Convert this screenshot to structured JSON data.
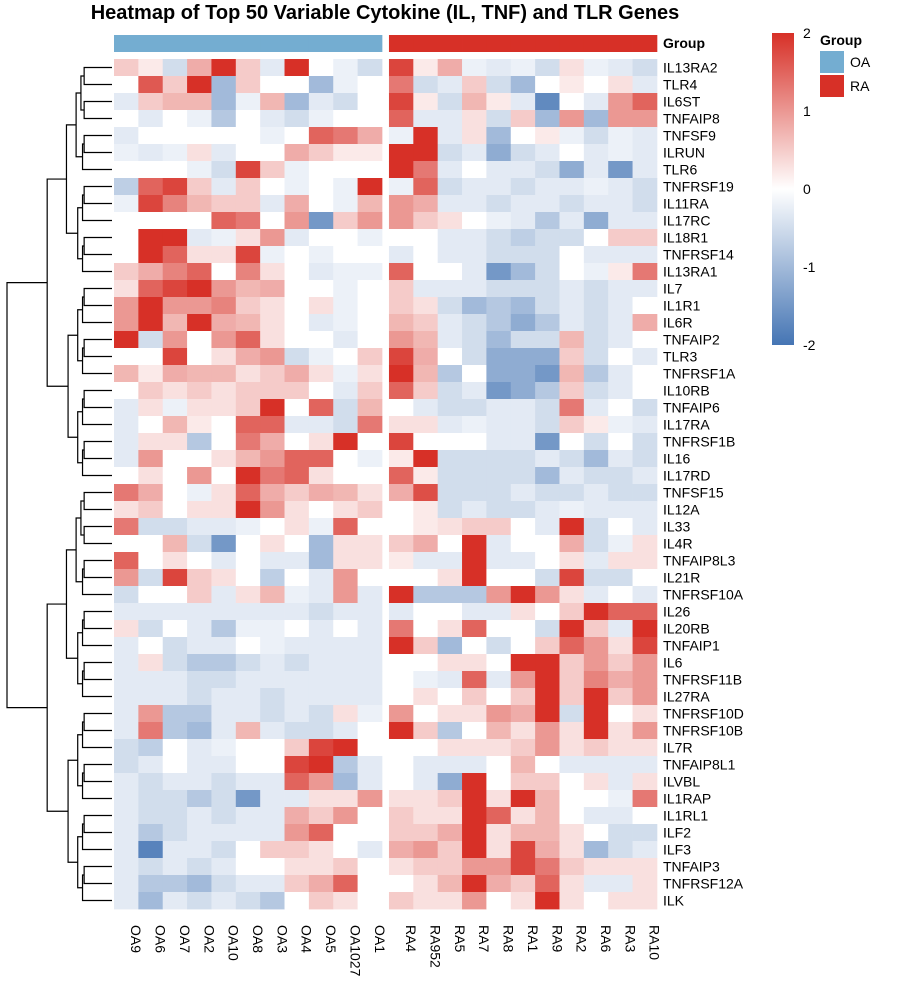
{
  "chart_data": {
    "type": "heatmap",
    "title": "Heatmap of Top 50 Variable Cytokine (IL, TNF) and TLR Genes",
    "columns": [
      "OA9",
      "OA6",
      "OA7",
      "OA2",
      "OA10",
      "OA8",
      "OA3",
      "OA4",
      "OA5",
      "OA1027",
      "OA1",
      "RA4",
      "RA952",
      "RA5",
      "RA7",
      "RA8",
      "RA1",
      "RA9",
      "RA2",
      "RA6",
      "RA3",
      "RA10"
    ],
    "column_groups": [
      "OA",
      "OA",
      "OA",
      "OA",
      "OA",
      "OA",
      "OA",
      "OA",
      "OA",
      "OA",
      "OA",
      "RA",
      "RA",
      "RA",
      "RA",
      "RA",
      "RA",
      "RA",
      "RA",
      "RA",
      "RA",
      "RA"
    ],
    "rows": [
      "IL13RA2",
      "TLR4",
      "IL6ST",
      "TNFAIP8",
      "TNFSF9",
      "ILRUN",
      "TLR6",
      "TNFRSF19",
      "IL11RA",
      "IL17RC",
      "IL18R1",
      "TNFRSF14",
      "IL13RA1",
      "IL7",
      "IL1R1",
      "IL6R",
      "TNFAIP2",
      "TLR3",
      "TNFRSF1A",
      "IL10RB",
      "TNFAIP6",
      "IL17RA",
      "TNFRSF1B",
      "IL16",
      "IL17RD",
      "TNFSF15",
      "IL12A",
      "IL33",
      "IL4R",
      "TNFAIP8L3",
      "IL21R",
      "TNFRSF10A",
      "IL26",
      "IL20RB",
      "TNFAIP1",
      "IL6",
      "TNFRSF11B",
      "IL27RA",
      "TNFRSF10D",
      "TNFRSF10B",
      "IL7R",
      "TNFAIP8L1",
      "ILVBL",
      "IL1RAP",
      "IL1RL1",
      "ILF2",
      "ILF3",
      "TNFAIP3",
      "TNFRSF12A",
      "ILK"
    ],
    "values": [
      [
        0.5,
        0.2,
        -0.5,
        0.8,
        2,
        0.5,
        -0.3,
        2,
        0,
        -0.2,
        -0.5,
        1.8,
        0.2,
        0.8,
        -0.2,
        -0.3,
        -0.2,
        -0.5,
        0.3,
        -0.2,
        -0.3,
        -0.5
      ],
      [
        0,
        1.6,
        0.5,
        2,
        -1,
        0.5,
        0,
        0,
        -1,
        -0.2,
        0,
        1.3,
        -0.5,
        -0.3,
        0.5,
        -0.5,
        -1,
        0,
        0.2,
        0,
        0.3,
        -0.3
      ],
      [
        -0.3,
        0.5,
        0.7,
        0.7,
        -1,
        -0.2,
        0.7,
        -1,
        -0.3,
        -0.5,
        0,
        1.8,
        0.2,
        -0.5,
        0.7,
        0.2,
        -0.3,
        -1.7,
        0,
        -0.3,
        1,
        1.5
      ],
      [
        0,
        -0.3,
        0,
        -0.2,
        -0.8,
        0,
        -0.3,
        -0.5,
        -0.2,
        0,
        0,
        1.5,
        -0.3,
        -0.3,
        0.3,
        -0.5,
        0.5,
        -1,
        1,
        -1,
        1,
        1
      ],
      [
        -0.3,
        0,
        0,
        0,
        0,
        0,
        -0.2,
        0,
        1.5,
        1.3,
        0.8,
        -0.2,
        2,
        -0.3,
        0.3,
        -1,
        0,
        0.2,
        -0.2,
        -0.5,
        -0.2,
        -0.3
      ],
      [
        -0.2,
        -0.3,
        -0.2,
        0.3,
        -0.3,
        0,
        0,
        0.8,
        0.5,
        0.2,
        0.2,
        2,
        2,
        -0.5,
        -0.3,
        -1.2,
        -0.5,
        -0.3,
        0,
        -0.3,
        -0.2,
        -0.3
      ],
      [
        0,
        0,
        0,
        -0.2,
        -0.5,
        1.8,
        0.5,
        -0.2,
        0,
        0,
        0,
        2,
        1.3,
        -0.3,
        0,
        -0.3,
        -0.3,
        -0.5,
        -1.2,
        -0.3,
        -1.5,
        -0.3
      ],
      [
        -0.7,
        1.5,
        1.8,
        0.5,
        -0.3,
        0.5,
        0,
        -0.2,
        0,
        -0.2,
        2,
        -0.2,
        1.5,
        -0.5,
        -0.3,
        -0.3,
        -0.5,
        -0.3,
        -0.3,
        -0.2,
        -0.3,
        -0.5
      ],
      [
        -0.2,
        1.8,
        1.2,
        0.7,
        0.5,
        0.5,
        -0.3,
        0.8,
        0,
        -0.2,
        0.7,
        1,
        0.8,
        -0.3,
        -0.3,
        -0.5,
        -0.3,
        -0.3,
        -0.5,
        -0.3,
        -0.3,
        -0.5
      ],
      [
        0,
        0,
        0,
        0,
        1.5,
        1.3,
        0,
        1,
        -1.5,
        0.5,
        1,
        1,
        0.5,
        0.3,
        0,
        -0.2,
        -0.3,
        -0.8,
        -0.3,
        -1.2,
        -0.3,
        -0.3
      ],
      [
        0,
        2,
        2,
        -0.3,
        -0.2,
        0.3,
        1,
        -0.3,
        0,
        0,
        -0.2,
        0,
        0,
        -0.3,
        -0.3,
        -0.5,
        -0.7,
        -0.5,
        -0.5,
        0,
        0.5,
        0.5
      ],
      [
        0,
        2,
        1.5,
        0.3,
        0.3,
        1.8,
        -0.2,
        0,
        -0.2,
        0,
        0,
        -0.3,
        0,
        -0.3,
        -0.3,
        -0.5,
        -0.5,
        -0.5,
        0,
        -0.3,
        -0.3,
        -0.3
      ],
      [
        0.5,
        0.8,
        1.2,
        1.5,
        0,
        1.2,
        0.3,
        0,
        -0.3,
        -0.2,
        -0.2,
        1.5,
        0,
        0,
        -0.3,
        -1.5,
        -1,
        -0.5,
        0,
        -0.2,
        0.2,
        1.3
      ],
      [
        0.3,
        1.5,
        1.8,
        2,
        1,
        0.7,
        0.8,
        0,
        0,
        -0.2,
        0,
        0.5,
        -0.3,
        -0.3,
        -0.3,
        -0.5,
        -0.5,
        -0.5,
        -0.3,
        -0.5,
        -0.3,
        -0.3
      ],
      [
        1,
        2,
        1,
        1,
        1.2,
        0.5,
        0.3,
        0,
        0.3,
        -0.2,
        0,
        0.5,
        0.3,
        -0.5,
        -1,
        -0.8,
        -1,
        -0.5,
        -0.3,
        -0.5,
        -0.3,
        0
      ],
      [
        1,
        2,
        0.7,
        2,
        0.8,
        0.7,
        0.3,
        0,
        -0.3,
        -0.2,
        0,
        0.7,
        0.5,
        -0.3,
        -0.5,
        -0.8,
        -1.2,
        -0.8,
        -0.3,
        -0.5,
        -0.3,
        0.8
      ],
      [
        2,
        -0.5,
        1,
        0,
        1,
        1.5,
        0.3,
        0,
        0,
        -0.3,
        0,
        1,
        0.7,
        -0.3,
        -0.5,
        -1,
        -0.5,
        -0.5,
        0.7,
        -0.5,
        -0.3,
        0
      ],
      [
        0,
        0,
        1.8,
        0,
        0.3,
        0.8,
        1,
        -0.5,
        -0.2,
        0,
        0.5,
        1.8,
        0.8,
        0,
        -0.5,
        -1.2,
        -1.2,
        -1.2,
        0.5,
        -0.5,
        0,
        -0.3
      ],
      [
        0.7,
        0.2,
        0.8,
        0.7,
        0.7,
        0.3,
        0.5,
        0.8,
        0.3,
        -0.2,
        0.3,
        2,
        0.7,
        -0.8,
        0,
        -1.2,
        -1.2,
        -1.5,
        0.7,
        -0.8,
        -0.3,
        0
      ],
      [
        0,
        0.5,
        0.3,
        0.5,
        0.3,
        0.5,
        0.5,
        0.5,
        0,
        -0.3,
        0.5,
        1.5,
        0.5,
        -0.5,
        -0.3,
        -1.5,
        -1.2,
        -0.8,
        0.5,
        -0.5,
        -0.3,
        0
      ],
      [
        -0.3,
        0.3,
        -0.2,
        0.3,
        0.3,
        0.5,
        2,
        0,
        1.5,
        -0.5,
        0.7,
        0,
        -0.3,
        -0.5,
        -0.5,
        -0.3,
        -0.3,
        -0.5,
        1.3,
        -0.3,
        0,
        -0.5
      ],
      [
        -0.3,
        0,
        0.7,
        0.2,
        0,
        1.5,
        1.5,
        -0.3,
        -0.3,
        -0.5,
        1.3,
        0.3,
        0.3,
        -0.3,
        -0.2,
        -0.3,
        -0.3,
        -0.5,
        0.5,
        0.2,
        -0.2,
        -0.3
      ],
      [
        -0.3,
        0.3,
        0.3,
        -0.8,
        0,
        1.3,
        0.8,
        0,
        0.3,
        2,
        0,
        1.8,
        0,
        0,
        0,
        -0.3,
        -0.3,
        -1.5,
        0,
        -0.5,
        0,
        -0.5
      ],
      [
        -0.3,
        1,
        0,
        0,
        0.3,
        0.7,
        1,
        1.5,
        1.5,
        0,
        -0.2,
        0.2,
        2,
        -0.5,
        -0.5,
        -0.5,
        -0.5,
        -0.3,
        -0.5,
        -1,
        -0.3,
        -0.5
      ],
      [
        0,
        0.3,
        0,
        1,
        0,
        2,
        1.3,
        1.5,
        0.3,
        0,
        0,
        1.5,
        0.2,
        -0.5,
        -0.5,
        -0.5,
        -0.5,
        -1,
        -0.3,
        -0.5,
        -0.5,
        -0.3
      ],
      [
        1.3,
        0.8,
        0,
        -0.2,
        0.3,
        1.5,
        0.8,
        0.5,
        0.8,
        0.7,
        0.3,
        0.8,
        1.7,
        -0.5,
        -0.5,
        -0.5,
        -0.3,
        -0.5,
        -0.5,
        -0.3,
        -0.5,
        -0.5
      ],
      [
        0.3,
        0.5,
        0,
        0.3,
        0.3,
        2,
        1,
        0.3,
        0,
        0.3,
        0.5,
        0,
        0.2,
        -0.5,
        -0.3,
        -0.5,
        -0.5,
        -0.3,
        -0.2,
        -0.3,
        -0.3,
        -0.3
      ],
      [
        1.3,
        -0.5,
        -0.5,
        -0.3,
        -0.3,
        -0.2,
        0,
        0.3,
        -0.2,
        1.5,
        0,
        0,
        0.2,
        0.3,
        0.5,
        0.5,
        0,
        -0.3,
        2,
        -0.5,
        0,
        -0.3
      ],
      [
        0,
        0,
        0.7,
        -0.5,
        -1.5,
        0,
        0.3,
        0,
        -1,
        0.3,
        0.3,
        0.5,
        0.8,
        0,
        2,
        -0.3,
        0,
        0,
        0.8,
        -0.5,
        -0.2,
        0.3
      ],
      [
        1.5,
        0,
        0.3,
        0,
        -0.3,
        0,
        -0.3,
        -0.3,
        -1,
        0.3,
        0.3,
        0.2,
        -0.3,
        -0.3,
        2,
        -0.3,
        -0.3,
        0,
        0.3,
        -0.3,
        0.3,
        0.3
      ],
      [
        1,
        -0.5,
        1.8,
        0.5,
        0.3,
        0,
        -0.7,
        0,
        -0.3,
        1,
        0,
        0,
        0,
        0.3,
        2,
        0,
        0,
        -0.5,
        1.8,
        -0.5,
        -0.5,
        0
      ],
      [
        -0.5,
        0,
        0,
        0.5,
        -0.3,
        0.3,
        0.7,
        -0.2,
        -0.3,
        1,
        -0.3,
        2,
        -0.8,
        -0.8,
        -0.8,
        1,
        2,
        1,
        0.3,
        -0.3,
        0,
        -0.3
      ],
      [
        -0.3,
        -0.3,
        -0.3,
        -0.3,
        -0.3,
        -0.3,
        -0.3,
        -0.3,
        -0.5,
        -0.3,
        -0.3,
        -0.3,
        0,
        0,
        -0.3,
        -0.3,
        0.3,
        0,
        0.5,
        2,
        1.5,
        1.5
      ],
      [
        0.3,
        -0.5,
        0,
        -0.3,
        -0.8,
        -0.2,
        -0.2,
        0,
        -0.3,
        0,
        -0.3,
        1.3,
        0,
        0.3,
        1.5,
        0,
        0,
        -0.5,
        2,
        0.5,
        -0.3,
        2
      ],
      [
        -0.3,
        0,
        -0.5,
        -0.3,
        -0.3,
        0,
        -0.2,
        -0.3,
        -0.3,
        -0.3,
        -0.3,
        2,
        0.5,
        -1,
        0,
        -0.5,
        0,
        0.5,
        1.5,
        1,
        0.3,
        1.8
      ],
      [
        -0.3,
        0.3,
        -0.5,
        -0.8,
        -0.8,
        -0.5,
        -0.3,
        -0.5,
        -0.3,
        -0.3,
        -0.3,
        0,
        0,
        0.3,
        0.3,
        0,
        2,
        2,
        0.5,
        1,
        0.5,
        1
      ],
      [
        -0.3,
        -0.3,
        -0.3,
        -0.5,
        -0.5,
        -0.3,
        -0.3,
        -0.3,
        -0.3,
        -0.3,
        -0.3,
        0,
        -0.2,
        -0.3,
        1.5,
        -0.3,
        1,
        2,
        0.5,
        1.2,
        0.8,
        1
      ],
      [
        -0.3,
        -0.3,
        -0.3,
        -0.5,
        -0.3,
        -0.3,
        -0.5,
        -0.3,
        -0.3,
        -0.3,
        -0.3,
        0,
        0.3,
        0,
        0.5,
        0,
        0.5,
        2,
        0.5,
        2,
        0.5,
        1
      ],
      [
        -0.3,
        1,
        -0.8,
        -0.8,
        -0.3,
        -0.3,
        -0.5,
        -0.3,
        -0.5,
        0.3,
        -0.2,
        1,
        0,
        0.3,
        0.3,
        1,
        0.8,
        2,
        -0.5,
        2,
        0,
        0.3
      ],
      [
        -0.3,
        1.3,
        -0.8,
        -1,
        -0.3,
        0.7,
        -0.3,
        -0.5,
        -0.5,
        -0.3,
        0,
        2,
        0.5,
        -0.8,
        0,
        0.7,
        0.3,
        1,
        0.3,
        2,
        0.3,
        1
      ],
      [
        -0.5,
        -0.7,
        0,
        -0.3,
        -0.2,
        0,
        0,
        0.5,
        1.8,
        2,
        0,
        0,
        0,
        0.3,
        0.3,
        0.3,
        0.5,
        1,
        0.3,
        0.5,
        0.3,
        0.3
      ],
      [
        -0.5,
        -0.3,
        0,
        -0.3,
        -0.3,
        0,
        0,
        1.8,
        2,
        -0.8,
        -0.3,
        0,
        -0.3,
        -0.3,
        -0.3,
        0,
        0.7,
        0,
        -0.3,
        -0.3,
        -0.3,
        -0.3
      ],
      [
        -0.3,
        -0.5,
        -0.3,
        -0.3,
        -0.5,
        -0.3,
        -0.3,
        1.5,
        1,
        -1,
        -0.3,
        0,
        -0.3,
        -1.2,
        2,
        0,
        0.5,
        0.5,
        0,
        0.3,
        -0.3,
        0.3
      ],
      [
        -0.3,
        -0.5,
        -0.5,
        -0.8,
        -0.5,
        -1.5,
        -0.3,
        -0.3,
        0.3,
        0.3,
        1,
        0.3,
        0.3,
        0.5,
        2,
        0.3,
        2,
        0.7,
        0,
        0,
        -0.2,
        1.3
      ],
      [
        -0.3,
        -0.5,
        -0.5,
        -0.3,
        -0.5,
        -0.3,
        -0.3,
        0.8,
        0.5,
        1,
        0,
        0.5,
        0.3,
        0.3,
        2,
        1.5,
        0.3,
        0.7,
        0,
        -0.3,
        -0.3,
        0
      ],
      [
        -0.3,
        -0.8,
        -0.5,
        -0.3,
        -0.3,
        -0.3,
        -0.3,
        1,
        1.5,
        0,
        0,
        0.5,
        0.5,
        0.8,
        2,
        0.3,
        0.7,
        0.7,
        0.3,
        0,
        -0.5,
        -0.5
      ],
      [
        -0.3,
        -1.8,
        -0.3,
        -0.3,
        -0.5,
        0,
        0.5,
        0.5,
        0.3,
        0,
        -0.3,
        0.8,
        1,
        0.5,
        2,
        0.3,
        1.8,
        0.8,
        0.3,
        -1,
        -0.5,
        -0.3
      ],
      [
        -0.3,
        -0.5,
        -0.3,
        -0.5,
        -0.3,
        0,
        0,
        0.3,
        0.3,
        0.5,
        0,
        0.3,
        0.5,
        0.5,
        1,
        1,
        1.8,
        1.3,
        0.5,
        0.3,
        0.3,
        0.3
      ],
      [
        -0.3,
        -0.8,
        -0.8,
        -1,
        -0.5,
        -0.3,
        -0.3,
        0.5,
        0.8,
        1.5,
        0,
        0,
        0.3,
        0.7,
        2,
        0.8,
        0.5,
        1.5,
        0.3,
        -0.3,
        -0.3,
        0.3
      ],
      [
        -0.3,
        -1,
        -0.3,
        -0.5,
        -0.3,
        -0.5,
        -0.8,
        0,
        0.5,
        0.3,
        0,
        0.5,
        0.3,
        0.3,
        1,
        0,
        0.3,
        2,
        0.3,
        0,
        0.3,
        0.3
      ]
    ],
    "color_scale": {
      "min": -2,
      "max": 2,
      "low": "#4575b4",
      "mid": "#ffffff",
      "high": "#d73027",
      "ticks": [
        "2",
        "1",
        "0",
        "-1",
        "-2"
      ]
    },
    "annotation_title": "Group",
    "groups": [
      {
        "name": "OA",
        "color": "#74add1"
      },
      {
        "name": "RA",
        "color": "#d73027"
      }
    ],
    "legend": "right"
  }
}
